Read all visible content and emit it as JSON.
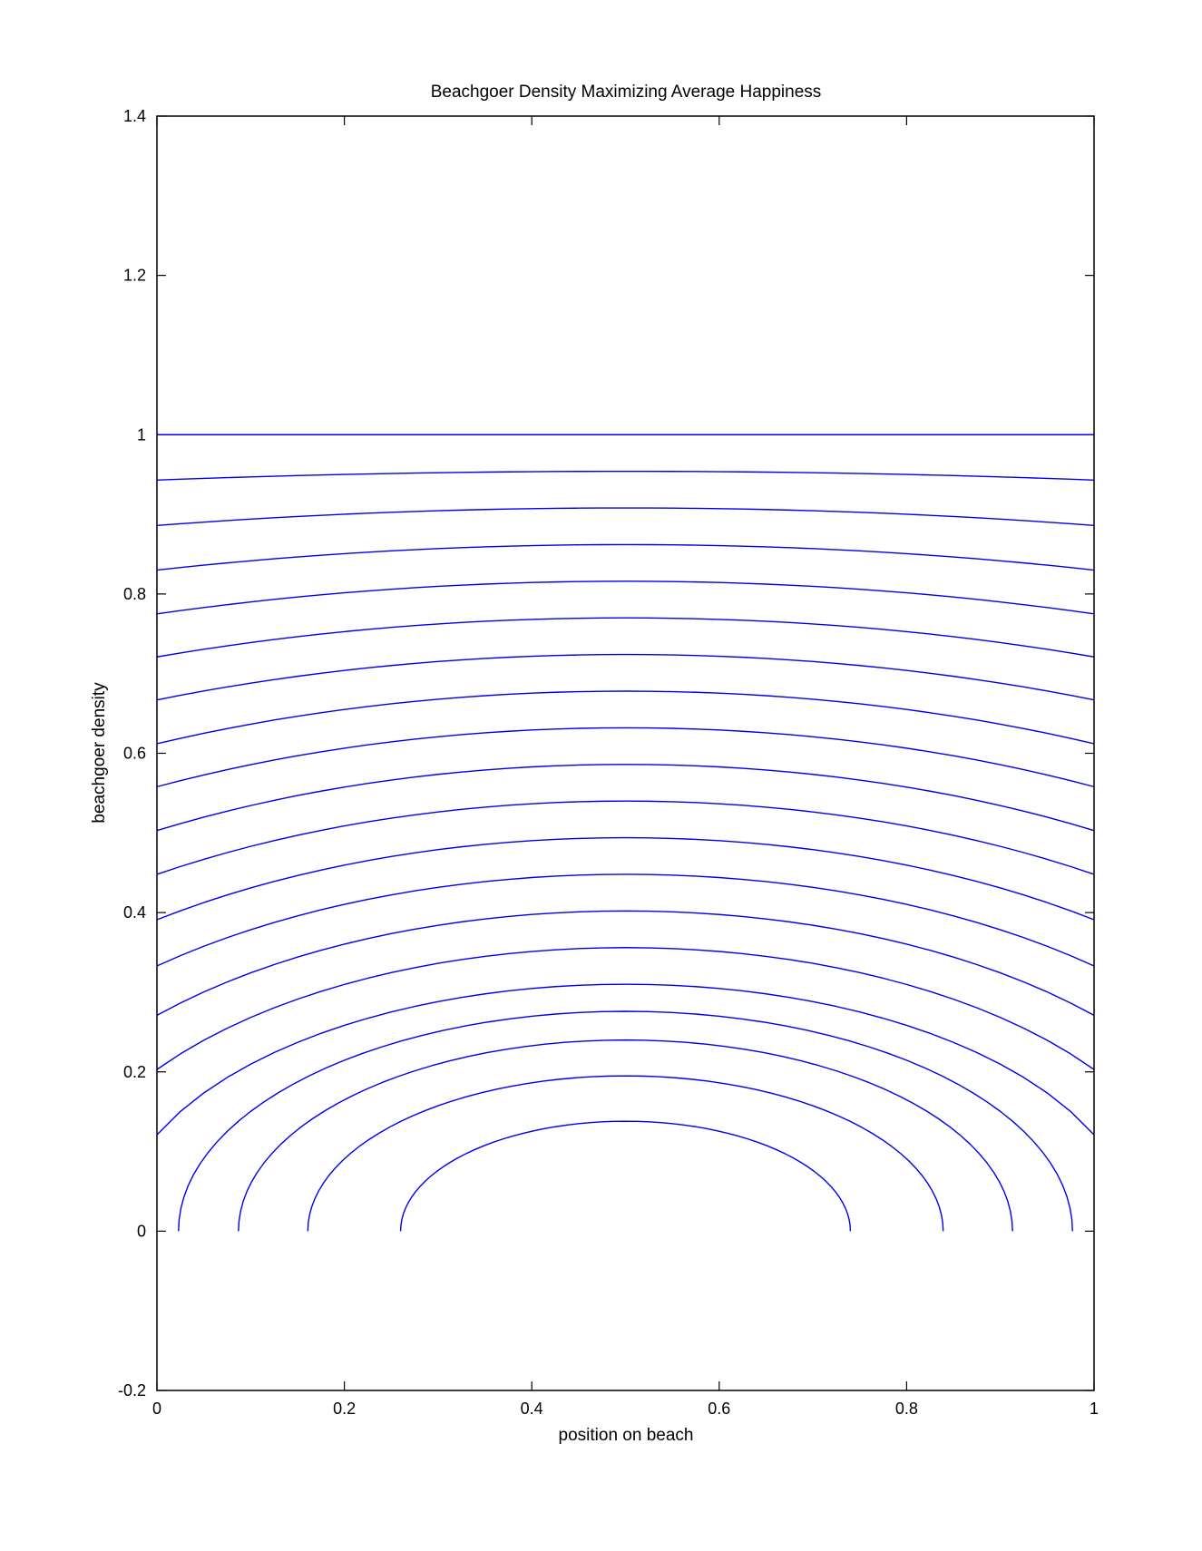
{
  "chart_data": {
    "type": "line",
    "title": "Beachgoer Density Maximizing Average Happiness",
    "xlabel": "position on beach",
    "ylabel": "beachgoer density",
    "xlim": [
      0,
      1
    ],
    "ylim": [
      -0.2,
      1.4
    ],
    "x_ticks": [
      "0",
      "0.2",
      "0.4",
      "0.6",
      "0.8",
      "1"
    ],
    "y_ticks": [
      "-0.2",
      "0",
      "0.2",
      "0.4",
      "0.6",
      "0.8",
      "1",
      "1.2",
      "1.4"
    ],
    "grid": false,
    "line_color": "#0000ee",
    "series": [
      {
        "center": 1.0,
        "ends": 1.0
      },
      {
        "center": 0.954,
        "ends": 0.943
      },
      {
        "center": 0.908,
        "ends": 0.886
      },
      {
        "center": 0.862,
        "ends": 0.83
      },
      {
        "center": 0.816,
        "ends": 0.775
      },
      {
        "center": 0.77,
        "ends": 0.721
      },
      {
        "center": 0.724,
        "ends": 0.667
      },
      {
        "center": 0.678,
        "ends": 0.612
      },
      {
        "center": 0.632,
        "ends": 0.558
      },
      {
        "center": 0.586,
        "ends": 0.503
      },
      {
        "center": 0.54,
        "ends": 0.448
      },
      {
        "center": 0.494,
        "ends": 0.391
      },
      {
        "center": 0.448,
        "ends": 0.333
      },
      {
        "center": 0.402,
        "ends": 0.271
      },
      {
        "center": 0.356,
        "ends": 0.203
      },
      {
        "center": 0.31,
        "ends": 0.121
      },
      {
        "center": 0.276,
        "x_start": 0.023,
        "x_end": 0.977
      },
      {
        "center": 0.24,
        "x_start": 0.087,
        "x_end": 0.913
      },
      {
        "center": 0.195,
        "x_start": 0.161,
        "x_end": 0.839
      },
      {
        "center": 0.138,
        "x_start": 0.26,
        "x_end": 0.74
      }
    ]
  }
}
